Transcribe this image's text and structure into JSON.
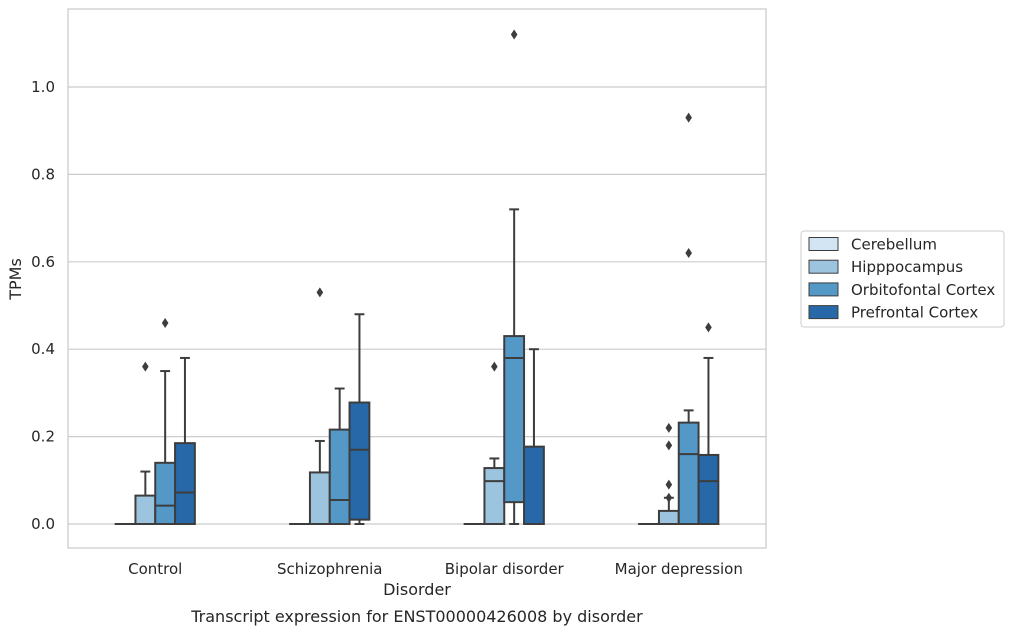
{
  "chart_data": {
    "type": "box",
    "caption": "Transcript expression for ENST00000426008 by disorder",
    "xlabel": "Disorder",
    "ylabel": "TPMs",
    "ylim": [
      -0.055,
      1.18
    ],
    "yticks": [
      0.0,
      0.2,
      0.4,
      0.6,
      0.8,
      1.0
    ],
    "ytick_labels": [
      "0.0",
      "0.2",
      "0.4",
      "0.6",
      "0.8",
      "1.0"
    ],
    "grid": true,
    "legend_position": "right-center",
    "categories": [
      "Control",
      "Schizophrenia",
      "Bipolar disorder",
      "Major depression"
    ],
    "series": [
      {
        "name": "Cerebellum",
        "color": "#d3e4f3",
        "boxes": [
          {
            "whisker_low": 0,
            "q1": 0,
            "median": 0,
            "q3": 0,
            "whisker_high": 0,
            "outliers": []
          },
          {
            "whisker_low": 0,
            "q1": 0,
            "median": 0,
            "q3": 0,
            "whisker_high": 0,
            "outliers": []
          },
          {
            "whisker_low": 0,
            "q1": 0,
            "median": 0,
            "q3": 0,
            "whisker_high": 0,
            "outliers": []
          },
          {
            "whisker_low": 0,
            "q1": 0,
            "median": 0,
            "q3": 0,
            "whisker_high": 0,
            "outliers": []
          }
        ]
      },
      {
        "name": "Hipppocampus",
        "color": "#9cc4df",
        "boxes": [
          {
            "whisker_low": 0,
            "q1": 0,
            "median": 0,
            "q3": 0.065,
            "whisker_high": 0.12,
            "outliers": [
              0.36
            ]
          },
          {
            "whisker_low": 0,
            "q1": 0,
            "median": 0,
            "q3": 0.118,
            "whisker_high": 0.19,
            "outliers": [
              0.53
            ]
          },
          {
            "whisker_low": 0,
            "q1": 0,
            "median": 0.098,
            "q3": 0.128,
            "whisker_high": 0.15,
            "outliers": [
              0.36
            ]
          },
          {
            "whisker_low": 0,
            "q1": 0,
            "median": 0,
            "q3": 0.03,
            "whisker_high": 0.06,
            "outliers": [
              0.06,
              0.09,
              0.18,
              0.22
            ]
          }
        ]
      },
      {
        "name": "Orbitofontal Cortex",
        "color": "#5498c8",
        "boxes": [
          {
            "whisker_low": 0,
            "q1": 0,
            "median": 0.042,
            "q3": 0.14,
            "whisker_high": 0.35,
            "outliers": [
              0.46
            ]
          },
          {
            "whisker_low": 0,
            "q1": 0,
            "median": 0.055,
            "q3": 0.216,
            "whisker_high": 0.31,
            "outliers": []
          },
          {
            "whisker_low": 0,
            "q1": 0.05,
            "median": 0.38,
            "q3": 0.43,
            "whisker_high": 0.72,
            "outliers": [
              1.12
            ]
          },
          {
            "whisker_low": 0,
            "q1": 0,
            "median": 0.16,
            "q3": 0.232,
            "whisker_high": 0.26,
            "outliers": [
              0.62,
              0.93
            ]
          }
        ]
      },
      {
        "name": "Prefrontal Cortex",
        "color": "#2668a8",
        "boxes": [
          {
            "whisker_low": 0,
            "q1": 0,
            "median": 0.072,
            "q3": 0.185,
            "whisker_high": 0.38,
            "outliers": []
          },
          {
            "whisker_low": 0,
            "q1": 0.01,
            "median": 0.17,
            "q3": 0.278,
            "whisker_high": 0.48,
            "outliers": []
          },
          {
            "whisker_low": 0,
            "q1": 0,
            "median": 0,
            "q3": 0.177,
            "whisker_high": 0.4,
            "outliers": []
          },
          {
            "whisker_low": 0,
            "q1": 0,
            "median": 0.098,
            "q3": 0.158,
            "whisker_high": 0.38,
            "outliers": [
              0.45
            ]
          }
        ]
      }
    ]
  },
  "colors": {
    "frame": "#cccccc",
    "grid": "#cccccc",
    "box_edge": "#3d3d3d"
  }
}
